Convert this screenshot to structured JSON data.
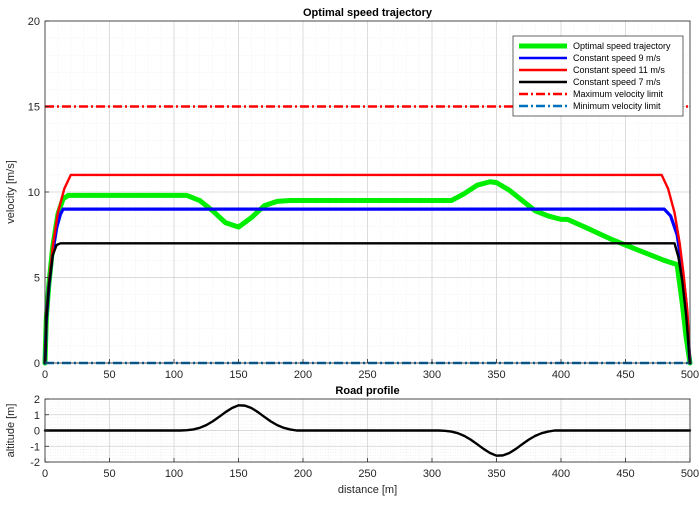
{
  "chart_data": [
    {
      "type": "line",
      "title": "Optimal speed trajectory",
      "xlabel": "",
      "ylabel": "velocity [m/s]",
      "xlim": [
        0,
        500
      ],
      "ylim": [
        0,
        20
      ],
      "xticks": [
        "0",
        "50",
        "100",
        "150",
        "200",
        "250",
        "300",
        "350",
        "400",
        "450",
        "500"
      ],
      "yticks": [
        "0",
        "5",
        "10",
        "15",
        "20"
      ],
      "grid": true,
      "minor_grid": true,
      "legend_position": "top-right",
      "series": [
        {
          "name": "Optimal speed trajectory",
          "color": "#00ee00",
          "style": "solid",
          "x": [
            0,
            1,
            3,
            6,
            10,
            14,
            18,
            20,
            50,
            110,
            120,
            130,
            140,
            150,
            160,
            170,
            180,
            190,
            220,
            250,
            300,
            315,
            325,
            335,
            345,
            350,
            360,
            370,
            380,
            390,
            400,
            405,
            420,
            440,
            460,
            480,
            490,
            494,
            497,
            500
          ],
          "y": [
            0,
            2.6,
            4.6,
            6.8,
            8.7,
            9.6,
            9.8,
            9.8,
            9.8,
            9.8,
            9.5,
            8.9,
            8.2,
            7.95,
            8.5,
            9.2,
            9.45,
            9.5,
            9.5,
            9.5,
            9.5,
            9.5,
            9.9,
            10.4,
            10.6,
            10.55,
            10.1,
            9.5,
            8.9,
            8.6,
            8.4,
            8.4,
            7.9,
            7.2,
            6.6,
            6.0,
            5.75,
            3.5,
            1.5,
            0
          ]
        },
        {
          "name": "Constant speed 9 m/s",
          "color": "#0000ff",
          "style": "solid",
          "x": [
            0,
            1,
            3,
            6,
            9,
            12,
            14,
            480,
            485,
            490,
            494,
            497,
            500
          ],
          "y": [
            0,
            2.5,
            4.5,
            6.5,
            7.9,
            8.7,
            9,
            9,
            8.6,
            7.5,
            5.5,
            3.5,
            0
          ]
        },
        {
          "name": "Constant speed 11 m/s",
          "color": "#ff0000",
          "style": "solid",
          "x": [
            0,
            1,
            3,
            6,
            10,
            15,
            20,
            478,
            483,
            488,
            492,
            495,
            498,
            500
          ],
          "y": [
            0,
            2.6,
            4.6,
            6.8,
            8.8,
            10.2,
            11,
            11,
            10.2,
            8.8,
            7.0,
            5.2,
            3.0,
            0
          ]
        },
        {
          "name": "Constant speed 7 m/s",
          "color": "#000000",
          "style": "solid",
          "x": [
            0,
            1,
            3,
            6,
            9,
            12,
            488,
            491,
            494,
            497,
            500
          ],
          "y": [
            0,
            2.5,
            4.5,
            6.3,
            6.9,
            7,
            7,
            6.2,
            4.8,
            2.8,
            0
          ]
        },
        {
          "name": "Maximum velocity limit",
          "color": "#ff0000",
          "style": "dashdot",
          "x": [
            0,
            500
          ],
          "y": [
            15,
            15
          ]
        },
        {
          "name": "Minimum velocity limit",
          "color": "#0072bd",
          "style": "dashdot",
          "x": [
            0,
            500
          ],
          "y": [
            0,
            0
          ]
        }
      ]
    },
    {
      "type": "line",
      "title": "Road profile",
      "xlabel": "distance [m]",
      "ylabel": "altitude [m]",
      "xlim": [
        0,
        500
      ],
      "ylim": [
        -2,
        2
      ],
      "xticks": [
        "0",
        "50",
        "100",
        "150",
        "200",
        "250",
        "300",
        "350",
        "400",
        "450",
        "500"
      ],
      "yticks": [
        "-2",
        "-1",
        "0",
        "1",
        "2"
      ],
      "grid": true,
      "minor_grid": true,
      "series": [
        {
          "color": "#000000",
          "style": "solid",
          "x": [
            0,
            105,
            110,
            115,
            120,
            125,
            130,
            135,
            140,
            145,
            150,
            155,
            160,
            165,
            170,
            175,
            180,
            185,
            190,
            195,
            305,
            310,
            315,
            320,
            325,
            330,
            335,
            340,
            345,
            350,
            355,
            360,
            365,
            370,
            375,
            380,
            385,
            390,
            395,
            500
          ],
          "y": [
            0,
            0,
            0.02,
            0.07,
            0.17,
            0.34,
            0.58,
            0.87,
            1.17,
            1.43,
            1.6,
            1.58,
            1.43,
            1.17,
            0.87,
            0.58,
            0.34,
            0.17,
            0.07,
            0,
            0,
            -0.02,
            -0.07,
            -0.17,
            -0.34,
            -0.58,
            -0.87,
            -1.17,
            -1.43,
            -1.6,
            -1.58,
            -1.43,
            -1.17,
            -0.87,
            -0.58,
            -0.34,
            -0.17,
            -0.07,
            0,
            0
          ]
        }
      ]
    }
  ]
}
